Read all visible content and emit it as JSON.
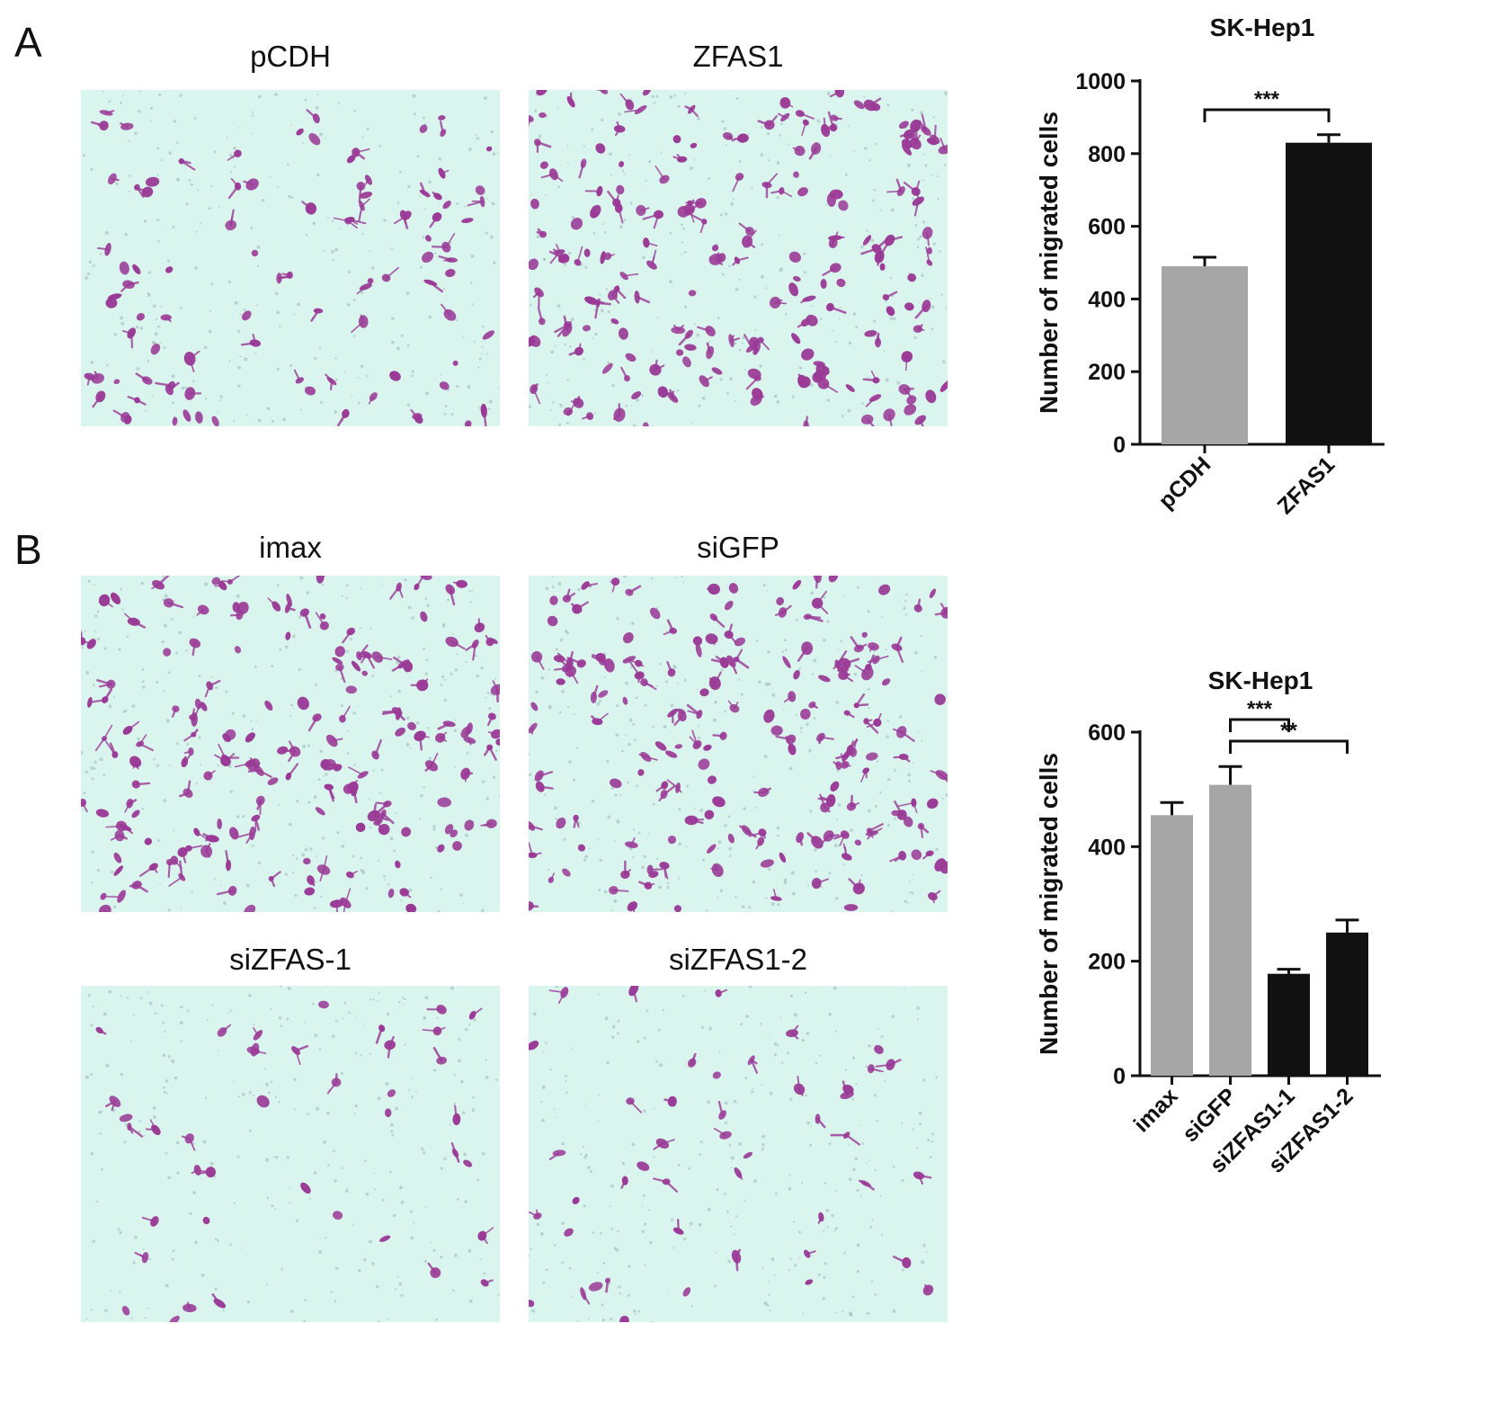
{
  "panels": {
    "a_label": "A",
    "b_label": "B"
  },
  "micrographs": [
    {
      "title": "pCDH",
      "density": 95
    },
    {
      "title": "ZFAS1",
      "density": 190
    },
    {
      "title": "imax",
      "density": 170
    },
    {
      "title": "siGFP",
      "density": 175
    },
    {
      "title": "siZFAS-1",
      "density": 40
    },
    {
      "title": "siZFAS1-2",
      "density": 45
    }
  ],
  "colors": {
    "background_micrograph": "#daf4ee",
    "cell_stain": "#9a3a96",
    "bar_gray": "#a6a6a6",
    "bar_black": "#111111"
  },
  "chart_data": [
    {
      "type": "bar",
      "title": "SK-Hep1",
      "ylabel": "Number of migrated cells",
      "categories": [
        "pCDH",
        "ZFAS1"
      ],
      "values": [
        490,
        830
      ],
      "errors": [
        25,
        22
      ],
      "bar_colors": [
        "#a6a6a6",
        "#111111"
      ],
      "ylim": [
        0,
        1000
      ],
      "yticks": [
        "0",
        "200",
        "400",
        "600",
        "800",
        "1000"
      ],
      "significance": [
        {
          "from": 0,
          "to": 1,
          "label": "***"
        }
      ]
    },
    {
      "type": "bar",
      "title": "SK-Hep1",
      "ylabel": "Number of migrated cells",
      "categories": [
        "imax",
        "siGFP",
        "siZFAS1-1",
        "siZFAS1-2"
      ],
      "values": [
        455,
        508,
        178,
        250
      ],
      "errors": [
        22,
        32,
        8,
        22
      ],
      "bar_colors": [
        "#a6a6a6",
        "#a6a6a6",
        "#111111",
        "#111111"
      ],
      "ylim": [
        0,
        600
      ],
      "yticks": [
        "0",
        "200",
        "400",
        "600"
      ],
      "significance": [
        {
          "from": 1,
          "to": 2,
          "label": "***"
        },
        {
          "from": 1,
          "to": 3,
          "label": "**"
        }
      ]
    }
  ]
}
